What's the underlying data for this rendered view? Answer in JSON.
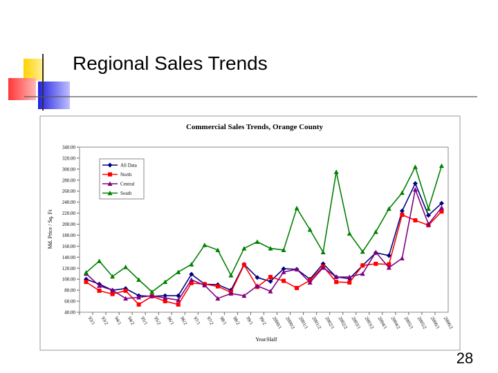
{
  "slide_title": "Regional Sales Trends",
  "page_number": "28",
  "chart_data": {
    "type": "line",
    "title": "Commercial Sales Trends, Orange County",
    "x_label": "Year/Half",
    "y_label": "Md. Price / Sq. Ft",
    "categories": [
      "93/1",
      "93/2",
      "94/1",
      "94/2",
      "95/1",
      "95/2",
      "96/1",
      "96/2",
      "97/1",
      "97/2",
      "98/1",
      "98/2",
      "99/1",
      "99/2",
      "2000/1",
      "2000/2",
      "2001/1",
      "2001/2",
      "2002/1",
      "2002/2",
      "2003/1",
      "2003/2",
      "2004/1",
      "2004/2",
      "2005/1",
      "2005/2",
      "2006/1",
      "2006/2"
    ],
    "series": [
      {
        "name": "All Data",
        "color": "#000080",
        "marker": "diamond",
        "values": [
          100,
          91,
          80,
          83,
          70,
          69,
          70,
          70,
          109,
          91,
          90,
          80,
          127,
          103,
          96,
          119,
          118,
          100,
          128,
          104,
          101,
          125,
          148,
          143,
          224,
          274,
          216,
          238
        ]
      },
      {
        "name": "North",
        "color": "#ff0000",
        "marker": "square",
        "values": [
          95,
          79,
          73,
          79,
          54,
          69,
          60,
          54,
          93,
          91,
          87,
          76,
          126,
          86,
          104,
          97,
          84,
          98,
          123,
          95,
          94,
          125,
          128,
          127,
          217,
          207,
          198,
          223
        ]
      },
      {
        "name": "Central",
        "color": "#800080",
        "marker": "triangle",
        "values": [
          110,
          88,
          80,
          65,
          67,
          70,
          66,
          62,
          99,
          89,
          65,
          74,
          70,
          88,
          78,
          113,
          118,
          94,
          121,
          104,
          104,
          110,
          149,
          121,
          138,
          263,
          200,
          230
        ]
      },
      {
        "name": "South",
        "color": "#008000",
        "marker": "triangle",
        "values": [
          112,
          133,
          105,
          122,
          99,
          77,
          95,
          113,
          127,
          162,
          153,
          107,
          156,
          168,
          156,
          153,
          229,
          190,
          149,
          295,
          183,
          150,
          186,
          228,
          257,
          304,
          228,
          306
        ]
      }
    ],
    "ylim": [
      40,
      340
    ],
    "yticks": [
      {
        "value": 40,
        "label": "40.00"
      },
      {
        "value": 60,
        "label": "60.00"
      },
      {
        "value": 80,
        "label": "80.00"
      },
      {
        "value": 100,
        "label": "100.00"
      },
      {
        "value": 120,
        "label": "120.00"
      },
      {
        "value": 140,
        "label": "140.00"
      },
      {
        "value": 160,
        "label": "160.00"
      },
      {
        "value": 180,
        "label": "180.00"
      },
      {
        "value": 200,
        "label": "200.00"
      },
      {
        "value": 220,
        "label": "220.00"
      },
      {
        "value": 240,
        "label": "240.00"
      },
      {
        "value": 260,
        "label": "260.00"
      },
      {
        "value": 280,
        "label": "280.00"
      },
      {
        "value": 300,
        "label": "300.00"
      },
      {
        "value": 320,
        "label": "320.00"
      },
      {
        "value": 340,
        "label": "340.00"
      }
    ],
    "legend": "upper left"
  }
}
